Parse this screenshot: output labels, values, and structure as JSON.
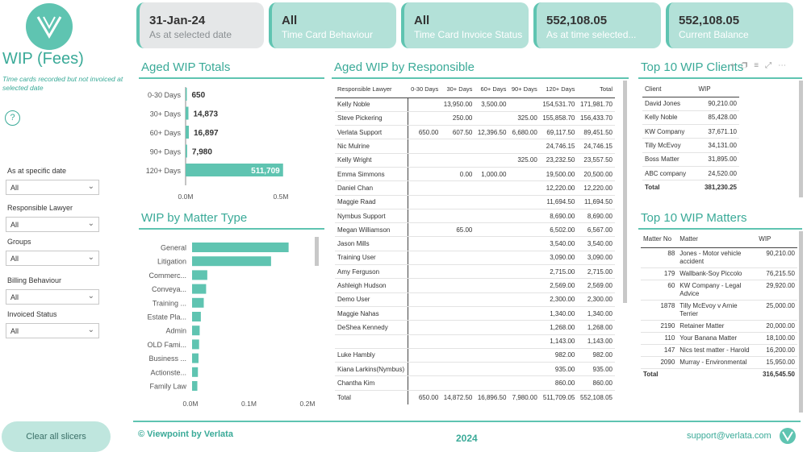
{
  "app": {
    "title": "WIP (Fees)",
    "subtitle": "Time cards recorded but not invoiced at selected date",
    "help_icon": "?",
    "accent": "#5fc4b1"
  },
  "slicers": [
    {
      "label": "As at specific date",
      "value": "All"
    },
    {
      "label": "Responsible Lawyer",
      "value": "All"
    },
    {
      "label": "Groups",
      "value": "All"
    },
    {
      "label": "Billing Behaviour",
      "value": "All"
    },
    {
      "label": "Invoiced Status",
      "value": "All"
    }
  ],
  "clear_button": "Clear all slicers",
  "cards": [
    {
      "value": "31-Jan-24",
      "label": "As at selected date"
    },
    {
      "value": "All",
      "label": "Time Card Behaviour"
    },
    {
      "value": "All",
      "label": "Time Card Invoice Status"
    },
    {
      "value": "552,108.05",
      "label": "As at time selected..."
    },
    {
      "value": "552,108.05",
      "label": "Current Balance"
    }
  ],
  "aged_totals": {
    "title": "Aged WIP Totals",
    "axis_labels": [
      "0.0M",
      "0.5M"
    ]
  },
  "matter_type": {
    "title": "WIP by Matter Type",
    "axis_labels": [
      "0.0M",
      "0.1M",
      "0.2M"
    ]
  },
  "chart_data": [
    {
      "type": "bar",
      "title": "Aged WIP Totals",
      "categories": [
        "0-30 Days",
        "30+ Days",
        "60+ Days",
        "90+ Days",
        "120+ Days"
      ],
      "values": [
        650,
        14873,
        16897,
        7980,
        511709
      ],
      "value_labels": [
        "650",
        "14,873",
        "16,897",
        "7,980",
        "511,709"
      ],
      "xlim": [
        0,
        500000
      ]
    },
    {
      "type": "bar",
      "title": "WIP by Matter Type",
      "categories": [
        "General",
        "Litigation",
        "Commerc...",
        "Conveya...",
        "Training ...",
        "Estate Pla...",
        "Admin",
        "OLD Fami...",
        "Business ...",
        "Actionste...",
        "Family Law"
      ],
      "values": [
        165000,
        135000,
        26000,
        24000,
        20000,
        15000,
        13000,
        12000,
        11000,
        10000,
        9000
      ],
      "xlim": [
        0,
        200000
      ]
    }
  ],
  "responsible": {
    "title": "Aged WIP by Responsible",
    "headers": [
      "Responsible Lawyer",
      "0-30 Days",
      "30+ Days",
      "60+ Days",
      "90+ Days",
      "120+ Days",
      "Total"
    ],
    "rows": [
      [
        "Kelly Noble",
        "",
        "13,950.00",
        "3,500.00",
        "",
        "154,531.70",
        "171,981.70"
      ],
      [
        "Steve Pickering",
        "",
        "250.00",
        "",
        "325.00",
        "155,858.70",
        "156,433.70"
      ],
      [
        "Verlata Support",
        "650.00",
        "607.50",
        "12,396.50",
        "6,680.00",
        "69,117.50",
        "89,451.50"
      ],
      [
        "Nic Mulrine",
        "",
        "",
        "",
        "",
        "24,746.15",
        "24,746.15"
      ],
      [
        "Kelly Wright",
        "",
        "",
        "",
        "325.00",
        "23,232.50",
        "23,557.50"
      ],
      [
        "Emma Simmons",
        "",
        "0.00",
        "1,000.00",
        "",
        "19,500.00",
        "20,500.00"
      ],
      [
        "Daniel Chan",
        "",
        "",
        "",
        "",
        "12,220.00",
        "12,220.00"
      ],
      [
        "Maggie Raad",
        "",
        "",
        "",
        "",
        "11,694.50",
        "11,694.50"
      ],
      [
        "Nymbus Support",
        "",
        "",
        "",
        "",
        "8,690.00",
        "8,690.00"
      ],
      [
        "Megan Williamson",
        "",
        "65.00",
        "",
        "",
        "6,502.00",
        "6,567.00"
      ],
      [
        "Jason Mills",
        "",
        "",
        "",
        "",
        "3,540.00",
        "3,540.00"
      ],
      [
        "Training User",
        "",
        "",
        "",
        "",
        "3,090.00",
        "3,090.00"
      ],
      [
        "Amy Ferguson",
        "",
        "",
        "",
        "",
        "2,715.00",
        "2,715.00"
      ],
      [
        "Ashleigh Hudson",
        "",
        "",
        "",
        "",
        "2,569.00",
        "2,569.00"
      ],
      [
        "Demo User",
        "",
        "",
        "",
        "",
        "2,300.00",
        "2,300.00"
      ],
      [
        "Maggie Nahas",
        "",
        "",
        "",
        "",
        "1,340.00",
        "1,340.00"
      ],
      [
        "DeShea Kennedy",
        "",
        "",
        "",
        "",
        "1,268.00",
        "1,268.00"
      ],
      [
        "",
        "",
        "",
        "",
        "",
        "1,143.00",
        "1,143.00"
      ],
      [
        "Luke Hambly",
        "",
        "",
        "",
        "",
        "982.00",
        "982.00"
      ],
      [
        "Kiana Larkins(Nymbus)",
        "",
        "",
        "",
        "",
        "935.00",
        "935.00"
      ],
      [
        "Chantha Kim",
        "",
        "",
        "",
        "",
        "860.00",
        "860.00"
      ]
    ],
    "total": [
      "Total",
      "650.00",
      "14,872.50",
      "16,896.50",
      "7,980.00",
      "511,709.05",
      "552,108.05"
    ]
  },
  "clients": {
    "title": "Top 10 WIP Clients",
    "headers": [
      "Client",
      "WIP"
    ],
    "rows": [
      [
        "David Jones",
        "90,210.00"
      ],
      [
        "Kelly Noble",
        "85,428.00"
      ],
      [
        "KW Company",
        "37,671.10"
      ],
      [
        "Tilly McEvoy",
        "34,131.00"
      ],
      [
        "Boss Matter",
        "31,895.00"
      ],
      [
        "ABC company",
        "24,520.00"
      ]
    ],
    "total": [
      "Total",
      "381,230.25"
    ]
  },
  "matters": {
    "title": "Top 10 WIP Matters",
    "headers": [
      "Matter No",
      "Matter",
      "WIP"
    ],
    "rows": [
      [
        "88",
        "Jones - Motor vehicle accident",
        "90,210.00"
      ],
      [
        "179",
        "Wallbank-Soy Piccolo",
        "76,215.50"
      ],
      [
        "60",
        "KW Company - Legal Advice",
        "29,920.00"
      ],
      [
        "1878",
        "Tilly McEvoy v Arnie Terrier",
        "25,000.00"
      ],
      [
        "2190",
        "Retainer Matter",
        "20,000.00"
      ],
      [
        "110",
        "Your Banana Matter",
        "18,100.00"
      ],
      [
        "147",
        "Nics test matter - Harold",
        "16,200.00"
      ],
      [
        "2090",
        "Murray - Environmental",
        "15,950.00"
      ]
    ],
    "total": [
      "Total",
      "",
      "316,545.50"
    ]
  },
  "footer": {
    "brand": "© Viewpoint by Verlata",
    "year": "2024",
    "support": "support@verlata.com"
  }
}
